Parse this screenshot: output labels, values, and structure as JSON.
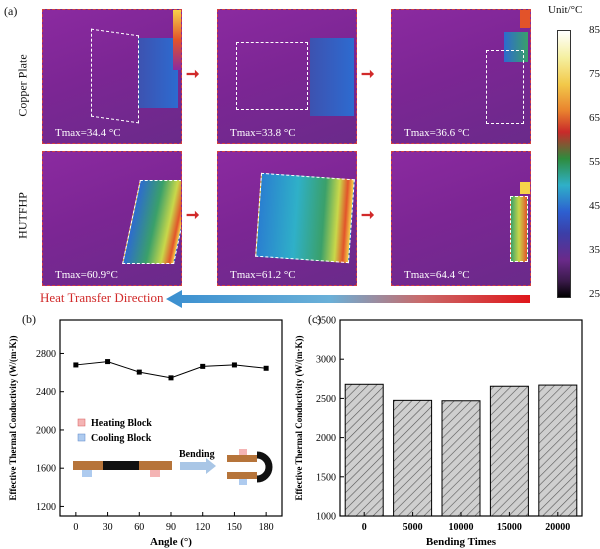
{
  "panel_a": {
    "letter": "(a)",
    "row_labels": [
      "Copper Plate",
      "HUTFHP"
    ],
    "images": [
      {
        "row": 0,
        "tmax": "Tmax=34.4 °C"
      },
      {
        "row": 0,
        "tmax": "Tmax=33.8 °C"
      },
      {
        "row": 0,
        "tmax": "Tmax=36.6 °C"
      },
      {
        "row": 1,
        "tmax": "Tmax=60.9°C"
      },
      {
        "row": 1,
        "tmax": "Tmax=61.2 °C"
      },
      {
        "row": 1,
        "tmax": "Tmax=64.4 °C"
      }
    ],
    "colorbar": {
      "unit": "Unit/°C",
      "ticks": [
        "85",
        "75",
        "65",
        "55",
        "45",
        "35",
        "25"
      ]
    },
    "direction_label": "Heat Transfer Direction"
  },
  "panel_b": {
    "letter": "(b)",
    "legend": {
      "heating": "Heating Block",
      "cooling": "Cooling Block",
      "bending": "Bending"
    }
  },
  "panel_c": {
    "letter": "(c)"
  },
  "chart_data": [
    {
      "type": "line",
      "x": [
        0,
        30,
        60,
        90,
        120,
        150,
        180
      ],
      "y": [
        2680,
        2715,
        2605,
        2545,
        2665,
        2680,
        2645
      ],
      "xlabel": "Angle (°)",
      "ylabel": "Effective Thermal Conductivity (W/(m·K))",
      "ylim": [
        1100,
        3150
      ],
      "xticks": [
        "0",
        "30",
        "60",
        "90",
        "120",
        "150",
        "180"
      ],
      "yticks": [
        "1200",
        "1600",
        "2000",
        "2400",
        "2800"
      ]
    },
    {
      "type": "bar",
      "categories": [
        "0",
        "5000",
        "10000",
        "15000",
        "20000"
      ],
      "values": [
        2680,
        2475,
        2470,
        2655,
        2670
      ],
      "xlabel": "Bending Times",
      "ylabel": "Effective Thermal Conductivity (W/(m·K))",
      "ylim": [
        1000,
        3500
      ],
      "yticks": [
        "1000",
        "1500",
        "2000",
        "2500",
        "3000",
        "3500"
      ]
    }
  ]
}
